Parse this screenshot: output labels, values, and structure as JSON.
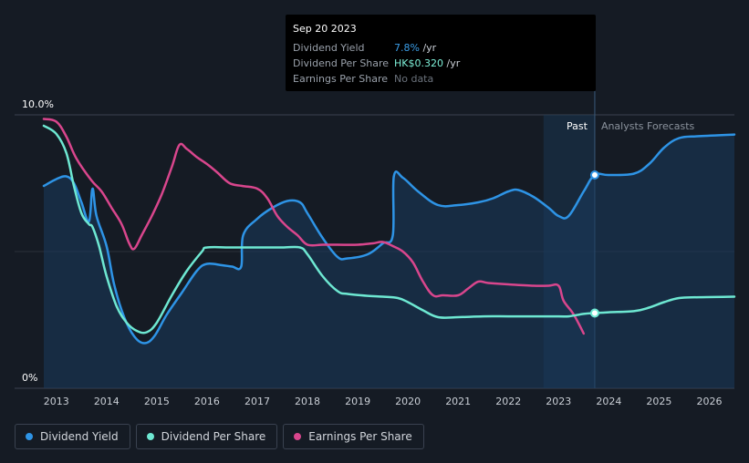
{
  "tooltip": {
    "date": "Sep 20 2023",
    "rows": [
      {
        "label": "Dividend Yield",
        "value": "7.8%",
        "unit": "/yr"
      },
      {
        "label": "Dividend Per Share",
        "value": "HK$0.320",
        "unit": "/yr"
      },
      {
        "label": "Earnings Per Share",
        "value": "No data"
      }
    ]
  },
  "legend": [
    {
      "label": "Dividend Yield",
      "color": "#2e94e6"
    },
    {
      "label": "Dividend Per Share",
      "color": "#6ee8d2"
    },
    {
      "label": "Earnings Per Share",
      "color": "#d9468d"
    }
  ],
  "chart_data": {
    "type": "line",
    "title": "",
    "ylabel_top": "10.0%",
    "ylabel_bottom": "0%",
    "ylim": [
      0,
      10
    ],
    "xlim": [
      2012.75,
      2026.5
    ],
    "x_ticks": [
      "2013",
      "2014",
      "2015",
      "2016",
      "2017",
      "2018",
      "2019",
      "2020",
      "2021",
      "2022",
      "2023",
      "2024",
      "2025",
      "2026"
    ],
    "x_tick_values": [
      2013,
      2014,
      2015,
      2016,
      2017,
      2018,
      2019,
      2020,
      2021,
      2022,
      2023,
      2024,
      2025,
      2026
    ],
    "past_label": "Past",
    "forecast_label": "Analysts Forecasts",
    "past_region": [
      2022.7,
      2023.72
    ],
    "marker_x": 2023.72,
    "series": [
      {
        "name": "Dividend Yield",
        "color": "#2e94e6",
        "points": [
          [
            2012.75,
            7.4
          ],
          [
            2013.0,
            7.65
          ],
          [
            2013.2,
            7.75
          ],
          [
            2013.35,
            7.5
          ],
          [
            2013.5,
            6.8
          ],
          [
            2013.65,
            6.1
          ],
          [
            2013.72,
            7.3
          ],
          [
            2013.8,
            6.3
          ],
          [
            2014.0,
            5.2
          ],
          [
            2014.15,
            3.8
          ],
          [
            2014.35,
            2.6
          ],
          [
            2014.55,
            1.9
          ],
          [
            2014.75,
            1.65
          ],
          [
            2014.95,
            1.9
          ],
          [
            2015.2,
            2.7
          ],
          [
            2015.5,
            3.5
          ],
          [
            2015.8,
            4.3
          ],
          [
            2016.0,
            4.55
          ],
          [
            2016.3,
            4.5
          ],
          [
            2016.5,
            4.45
          ],
          [
            2016.68,
            4.45
          ],
          [
            2016.72,
            5.6
          ],
          [
            2017.0,
            6.2
          ],
          [
            2017.3,
            6.6
          ],
          [
            2017.6,
            6.85
          ],
          [
            2017.85,
            6.8
          ],
          [
            2018.0,
            6.4
          ],
          [
            2018.3,
            5.5
          ],
          [
            2018.6,
            4.8
          ],
          [
            2018.8,
            4.75
          ],
          [
            2019.2,
            4.9
          ],
          [
            2019.5,
            5.3
          ],
          [
            2019.7,
            5.6
          ],
          [
            2019.72,
            7.75
          ],
          [
            2019.9,
            7.7
          ],
          [
            2020.2,
            7.2
          ],
          [
            2020.6,
            6.7
          ],
          [
            2021.0,
            6.7
          ],
          [
            2021.4,
            6.8
          ],
          [
            2021.7,
            6.95
          ],
          [
            2022.0,
            7.2
          ],
          [
            2022.2,
            7.25
          ],
          [
            2022.5,
            7.0
          ],
          [
            2022.8,
            6.6
          ],
          [
            2023.0,
            6.3
          ],
          [
            2023.2,
            6.3
          ],
          [
            2023.5,
            7.2
          ],
          [
            2023.72,
            7.8
          ],
          [
            2024.0,
            7.8
          ],
          [
            2024.5,
            7.85
          ],
          [
            2024.8,
            8.2
          ],
          [
            2025.1,
            8.8
          ],
          [
            2025.4,
            9.15
          ],
          [
            2025.8,
            9.22
          ],
          [
            2026.5,
            9.28
          ]
        ]
      },
      {
        "name": "Dividend Per Share",
        "color": "#6ee8d2",
        "points": [
          [
            2012.75,
            9.6
          ],
          [
            2013.0,
            9.3
          ],
          [
            2013.2,
            8.6
          ],
          [
            2013.35,
            7.4
          ],
          [
            2013.5,
            6.4
          ],
          [
            2013.65,
            6.0
          ],
          [
            2013.72,
            5.9
          ],
          [
            2013.85,
            5.2
          ],
          [
            2014.0,
            4.1
          ],
          [
            2014.2,
            3.0
          ],
          [
            2014.4,
            2.4
          ],
          [
            2014.6,
            2.1
          ],
          [
            2014.8,
            2.05
          ],
          [
            2015.0,
            2.4
          ],
          [
            2015.3,
            3.4
          ],
          [
            2015.6,
            4.3
          ],
          [
            2015.9,
            5.0
          ],
          [
            2016.0,
            5.15
          ],
          [
            2016.5,
            5.15
          ],
          [
            2017.0,
            5.15
          ],
          [
            2017.5,
            5.15
          ],
          [
            2017.85,
            5.15
          ],
          [
            2018.0,
            4.9
          ],
          [
            2018.3,
            4.1
          ],
          [
            2018.6,
            3.55
          ],
          [
            2018.8,
            3.45
          ],
          [
            2019.2,
            3.38
          ],
          [
            2019.5,
            3.35
          ],
          [
            2019.8,
            3.3
          ],
          [
            2020.0,
            3.15
          ],
          [
            2020.3,
            2.85
          ],
          [
            2020.6,
            2.6
          ],
          [
            2021.0,
            2.6
          ],
          [
            2021.5,
            2.63
          ],
          [
            2022.0,
            2.63
          ],
          [
            2022.5,
            2.63
          ],
          [
            2023.0,
            2.63
          ],
          [
            2023.2,
            2.63
          ],
          [
            2023.5,
            2.72
          ],
          [
            2023.72,
            2.75
          ],
          [
            2024.0,
            2.78
          ],
          [
            2024.5,
            2.82
          ],
          [
            2024.8,
            2.95
          ],
          [
            2025.1,
            3.15
          ],
          [
            2025.4,
            3.3
          ],
          [
            2025.8,
            3.33
          ],
          [
            2026.5,
            3.35
          ]
        ]
      },
      {
        "name": "Earnings Per Share",
        "color": "#d9468d",
        "points": [
          [
            2012.75,
            9.85
          ],
          [
            2013.0,
            9.75
          ],
          [
            2013.2,
            9.2
          ],
          [
            2013.4,
            8.4
          ],
          [
            2013.7,
            7.6
          ],
          [
            2013.9,
            7.2
          ],
          [
            2014.1,
            6.6
          ],
          [
            2014.3,
            6.0
          ],
          [
            2014.45,
            5.3
          ],
          [
            2014.55,
            5.1
          ],
          [
            2014.7,
            5.6
          ],
          [
            2014.9,
            6.3
          ],
          [
            2015.1,
            7.1
          ],
          [
            2015.3,
            8.1
          ],
          [
            2015.45,
            8.9
          ],
          [
            2015.6,
            8.75
          ],
          [
            2015.8,
            8.45
          ],
          [
            2016.0,
            8.2
          ],
          [
            2016.2,
            7.9
          ],
          [
            2016.45,
            7.5
          ],
          [
            2016.7,
            7.4
          ],
          [
            2017.0,
            7.3
          ],
          [
            2017.2,
            6.95
          ],
          [
            2017.4,
            6.3
          ],
          [
            2017.6,
            5.9
          ],
          [
            2017.8,
            5.6
          ],
          [
            2018.0,
            5.25
          ],
          [
            2018.3,
            5.25
          ],
          [
            2018.6,
            5.25
          ],
          [
            2019.0,
            5.25
          ],
          [
            2019.3,
            5.3
          ],
          [
            2019.5,
            5.35
          ],
          [
            2019.7,
            5.2
          ],
          [
            2019.9,
            5.0
          ],
          [
            2020.1,
            4.6
          ],
          [
            2020.3,
            3.9
          ],
          [
            2020.5,
            3.4
          ],
          [
            2020.7,
            3.4
          ],
          [
            2021.0,
            3.4
          ],
          [
            2021.2,
            3.65
          ],
          [
            2021.4,
            3.9
          ],
          [
            2021.6,
            3.85
          ],
          [
            2022.0,
            3.8
          ],
          [
            2022.5,
            3.75
          ],
          [
            2022.8,
            3.75
          ],
          [
            2023.0,
            3.75
          ],
          [
            2023.1,
            3.2
          ],
          [
            2023.3,
            2.7
          ],
          [
            2023.5,
            2.0
          ]
        ]
      }
    ]
  }
}
